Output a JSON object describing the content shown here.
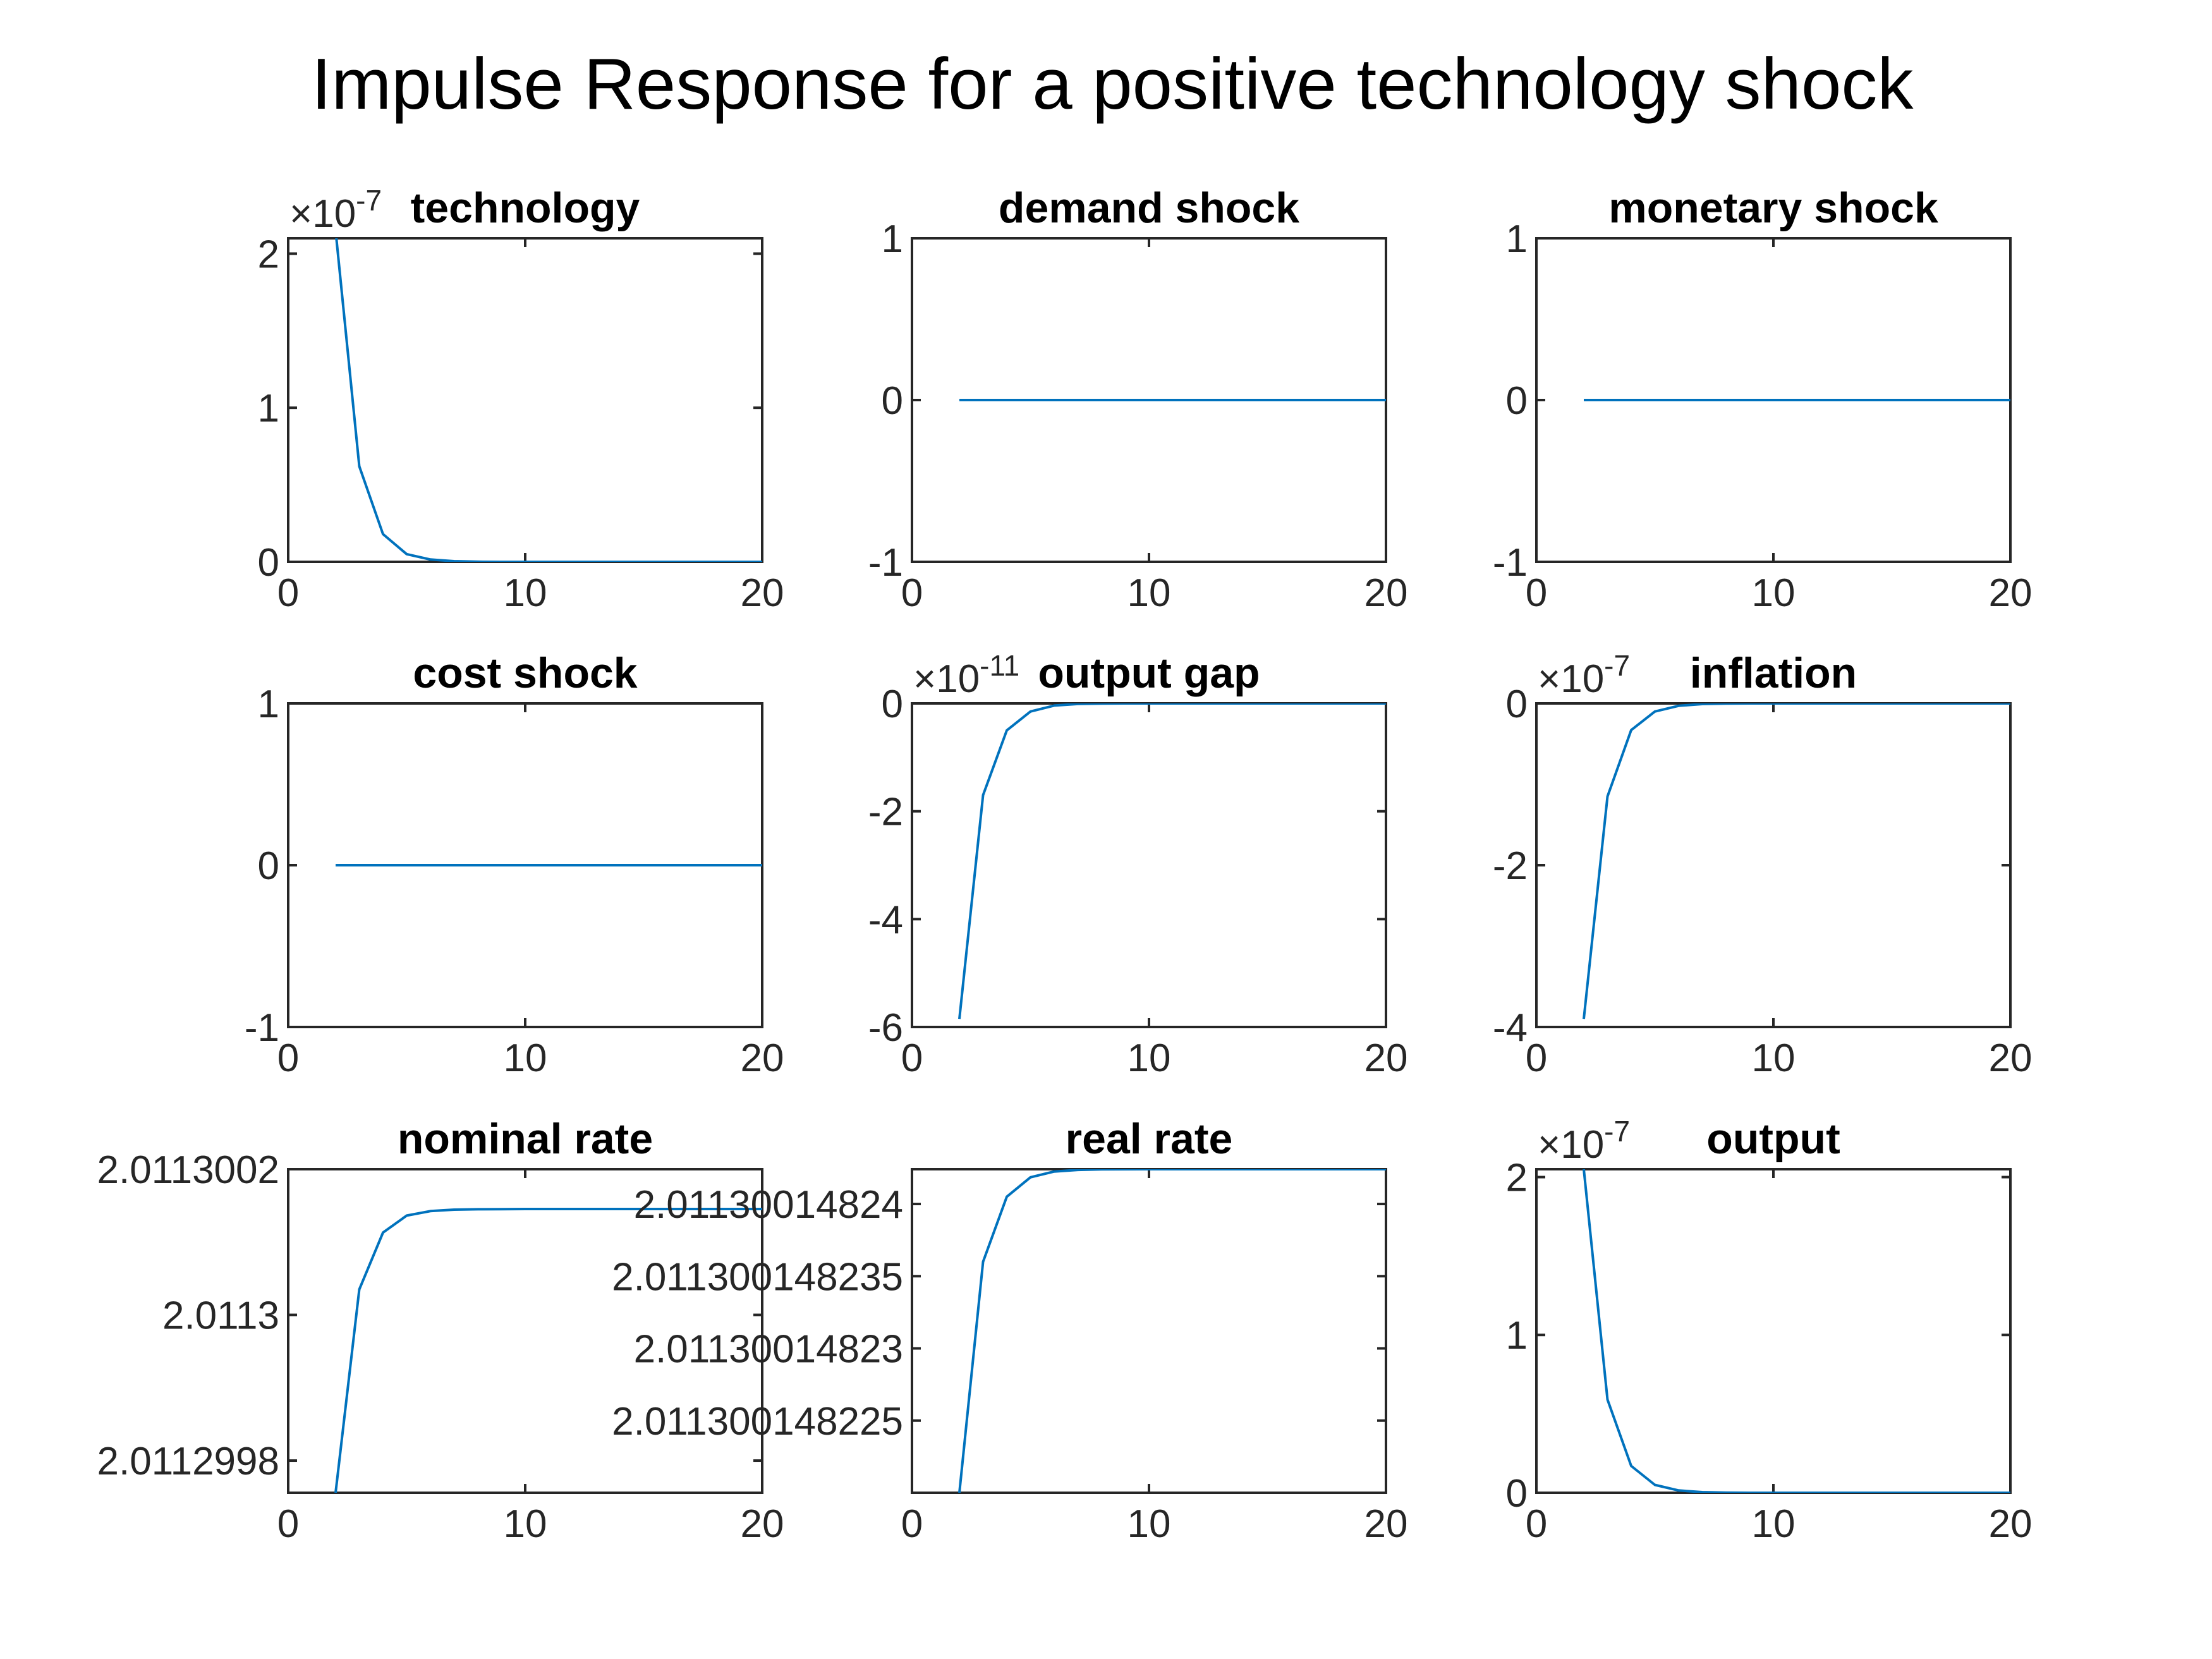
{
  "figure": {
    "title": "Impulse Response for a positive technology shock"
  },
  "chart_data": [
    {
      "type": "line",
      "title": "technology",
      "x": [
        2,
        3,
        4,
        5,
        6,
        7,
        8,
        9,
        10,
        11,
        12,
        13,
        14,
        15,
        16,
        17,
        18,
        19,
        20
      ],
      "values": [
        2.15,
        0.62,
        0.18,
        0.05,
        0.015,
        0.004,
        0.001,
        0,
        0,
        0,
        0,
        0,
        0,
        0,
        0,
        0,
        0,
        0,
        0
      ],
      "exponent": "-7",
      "xlim": [
        0,
        20
      ],
      "ylim": [
        0,
        2.1
      ],
      "xticks": [
        0,
        10,
        20
      ],
      "xtick_labels": [
        "0",
        "10",
        "20"
      ],
      "yticks": [
        0,
        1,
        2
      ],
      "ytick_labels": [
        "0",
        "1",
        "2"
      ],
      "color": "#0072BD"
    },
    {
      "type": "line",
      "title": "demand shock",
      "x": [
        2,
        3,
        4,
        5,
        6,
        7,
        8,
        9,
        10,
        11,
        12,
        13,
        14,
        15,
        16,
        17,
        18,
        19,
        20
      ],
      "values": [
        0,
        0,
        0,
        0,
        0,
        0,
        0,
        0,
        0,
        0,
        0,
        0,
        0,
        0,
        0,
        0,
        0,
        0,
        0
      ],
      "xlim": [
        0,
        20
      ],
      "ylim": [
        -1,
        1
      ],
      "xticks": [
        0,
        10,
        20
      ],
      "xtick_labels": [
        "0",
        "10",
        "20"
      ],
      "yticks": [
        -1,
        0,
        1
      ],
      "ytick_labels": [
        "-1",
        "0",
        "1"
      ],
      "color": "#0072BD"
    },
    {
      "type": "line",
      "title": "monetary shock",
      "x": [
        2,
        3,
        4,
        5,
        6,
        7,
        8,
        9,
        10,
        11,
        12,
        13,
        14,
        15,
        16,
        17,
        18,
        19,
        20
      ],
      "values": [
        0,
        0,
        0,
        0,
        0,
        0,
        0,
        0,
        0,
        0,
        0,
        0,
        0,
        0,
        0,
        0,
        0,
        0,
        0
      ],
      "xlim": [
        0,
        20
      ],
      "ylim": [
        -1,
        1
      ],
      "xticks": [
        0,
        10,
        20
      ],
      "xtick_labels": [
        "0",
        "10",
        "20"
      ],
      "yticks": [
        -1,
        0,
        1
      ],
      "ytick_labels": [
        "-1",
        "0",
        "1"
      ],
      "color": "#0072BD"
    },
    {
      "type": "line",
      "title": "cost shock",
      "x": [
        2,
        3,
        4,
        5,
        6,
        7,
        8,
        9,
        10,
        11,
        12,
        13,
        14,
        15,
        16,
        17,
        18,
        19,
        20
      ],
      "values": [
        0,
        0,
        0,
        0,
        0,
        0,
        0,
        0,
        0,
        0,
        0,
        0,
        0,
        0,
        0,
        0,
        0,
        0,
        0
      ],
      "xlim": [
        0,
        20
      ],
      "ylim": [
        -1,
        1
      ],
      "xticks": [
        0,
        10,
        20
      ],
      "xtick_labels": [
        "0",
        "10",
        "20"
      ],
      "yticks": [
        -1,
        0,
        1
      ],
      "ytick_labels": [
        "-1",
        "0",
        "1"
      ],
      "color": "#0072BD"
    },
    {
      "type": "line",
      "title": "output gap",
      "x": [
        2,
        3,
        4,
        5,
        6,
        7,
        8,
        9,
        10,
        11,
        12,
        13,
        14,
        15,
        16,
        17,
        18,
        19,
        20
      ],
      "values": [
        -5.85,
        -1.7,
        -0.5,
        -0.15,
        -0.04,
        -0.01,
        -0.003,
        0,
        0,
        0,
        0,
        0,
        0,
        0,
        0,
        0,
        0,
        0,
        0
      ],
      "exponent": "-11",
      "xlim": [
        0,
        20
      ],
      "ylim": [
        -6,
        0
      ],
      "xticks": [
        0,
        10,
        20
      ],
      "xtick_labels": [
        "0",
        "10",
        "20"
      ],
      "yticks": [
        -6,
        -4,
        -2,
        0
      ],
      "ytick_labels": [
        "-6",
        "-4",
        "-2",
        "0"
      ],
      "color": "#0072BD"
    },
    {
      "type": "line",
      "title": "inflation",
      "x": [
        2,
        3,
        4,
        5,
        6,
        7,
        8,
        9,
        10,
        11,
        12,
        13,
        14,
        15,
        16,
        17,
        18,
        19,
        20
      ],
      "values": [
        -3.9,
        -1.15,
        -0.33,
        -0.1,
        -0.03,
        -0.008,
        -0.002,
        0,
        0,
        0,
        0,
        0,
        0,
        0,
        0,
        0,
        0,
        0,
        0
      ],
      "exponent": "-7",
      "xlim": [
        0,
        20
      ],
      "ylim": [
        -4,
        0
      ],
      "xticks": [
        0,
        10,
        20
      ],
      "xtick_labels": [
        "0",
        "10",
        "20"
      ],
      "yticks": [
        -4,
        -2,
        0
      ],
      "ytick_labels": [
        "-4",
        "-2",
        "0"
      ],
      "color": "#0072BD"
    },
    {
      "type": "line",
      "title": "nominal rate",
      "x": [
        2,
        3,
        4,
        5,
        6,
        7,
        8,
        9,
        10,
        11,
        12,
        13,
        14,
        15,
        16,
        17,
        18,
        19,
        20
      ],
      "values": [
        2.0112997558,
        2.011300035,
        2.011300113,
        2.0113001363,
        2.0113001425,
        2.0113001445,
        2.011300145,
        2.0113001452,
        2.0113001453,
        2.0113001453,
        2.0113001453,
        2.0113001453,
        2.0113001453,
        2.0113001453,
        2.0113001453,
        2.0113001453,
        2.0113001453,
        2.0113001453,
        2.0113001453
      ],
      "xlim": [
        0,
        20
      ],
      "ylim": [
        2.0112997558,
        2.0113002
      ],
      "xticks": [
        0,
        10,
        20
      ],
      "xtick_labels": [
        "0",
        "10",
        "20"
      ],
      "yticks": [
        2.0112998,
        2.0113,
        2.0113002
      ],
      "ytick_labels": [
        "2.0112998",
        "2.0113",
        "2.0113002"
      ],
      "color": "#0072BD"
    },
    {
      "type": "line",
      "title": "real rate",
      "x": [
        2,
        3,
        4,
        5,
        6,
        7,
        8,
        9,
        10,
        11,
        12,
        13,
        14,
        15,
        16,
        17,
        18,
        19,
        20
      ],
      "values": [
        2.01130014822,
        2.011300148236,
        2.0113001482405,
        2.01130014824185,
        2.011300148242245,
        2.01130014824236,
        2.011300148242395,
        2.011300148242405,
        2.011300148242408,
        2.011300148242409,
        2.011300148242409,
        2.011300148242409,
        2.011300148242409,
        2.011300148242409,
        2.011300148242409,
        2.011300148242409,
        2.011300148242409,
        2.011300148242409,
        2.011300148242409
      ],
      "xlim": [
        0,
        20
      ],
      "ylim": [
        2.01130014822,
        2.011300148242409
      ],
      "xticks": [
        0,
        10,
        20
      ],
      "xtick_labels": [
        "0",
        "10",
        "20"
      ],
      "yticks": [
        2.011300148225,
        2.01130014823,
        2.011300148235,
        2.01130014824
      ],
      "ytick_labels": [
        "2.011300148225",
        "2.01130014823",
        "2.011300148235",
        "2.01130014824"
      ],
      "color": "#0072BD"
    },
    {
      "type": "line",
      "title": "output",
      "x": [
        2,
        3,
        4,
        5,
        6,
        7,
        8,
        9,
        10,
        11,
        12,
        13,
        14,
        15,
        16,
        17,
        18,
        19,
        20
      ],
      "values": [
        2.05,
        0.59,
        0.17,
        0.05,
        0.015,
        0.004,
        0.001,
        0,
        0,
        0,
        0,
        0,
        0,
        0,
        0,
        0,
        0,
        0,
        0
      ],
      "exponent": "-7",
      "xlim": [
        0,
        20
      ],
      "ylim": [
        0,
        2.05
      ],
      "xticks": [
        0,
        10,
        20
      ],
      "xtick_labels": [
        "0",
        "10",
        "20"
      ],
      "yticks": [
        0,
        1,
        2
      ],
      "ytick_labels": [
        "0",
        "1",
        "2"
      ],
      "color": "#0072BD"
    }
  ]
}
